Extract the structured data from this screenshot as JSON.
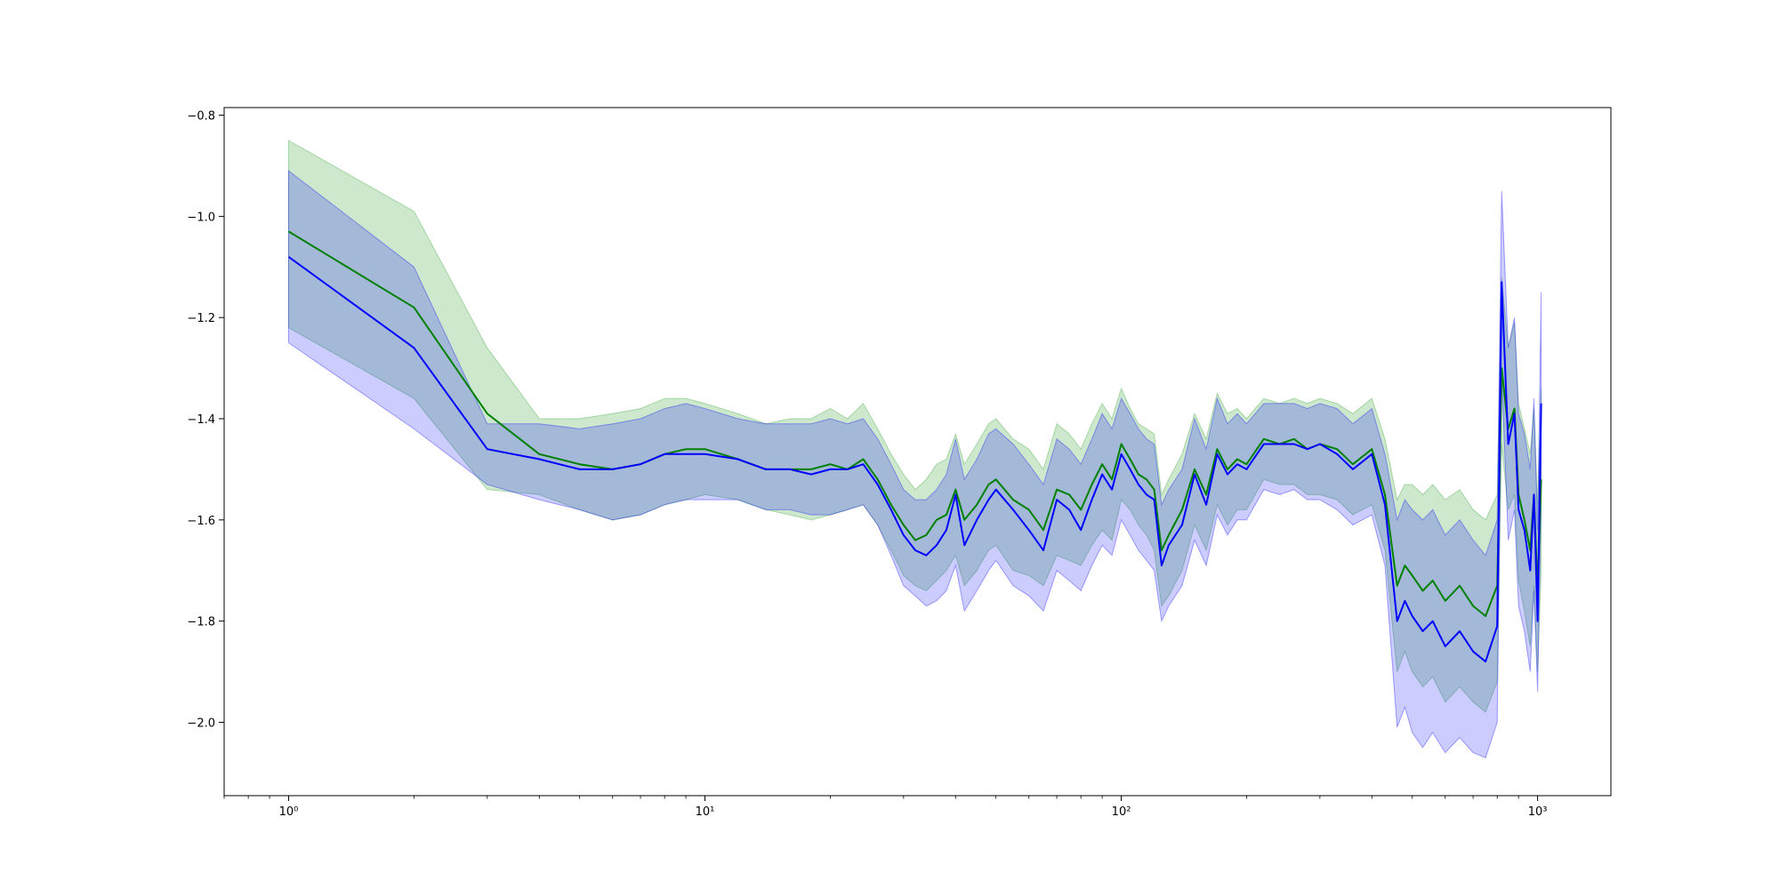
{
  "chart_data": {
    "type": "line",
    "title": "",
    "xlabel": "",
    "ylabel": "",
    "x_scale": "log",
    "xlim": [
      0.7,
      1500
    ],
    "ylim": [
      -2.145,
      -0.785
    ],
    "grid": false,
    "legend": "none",
    "x_ticks": [
      {
        "value": 1,
        "label": "10⁰"
      },
      {
        "value": 10,
        "label": "10¹"
      },
      {
        "value": 100,
        "label": "10²"
      },
      {
        "value": 1000,
        "label": "10³"
      }
    ],
    "y_ticks": [
      {
        "value": -0.8,
        "label": "−0.8"
      },
      {
        "value": -1.0,
        "label": "−1.0"
      },
      {
        "value": -1.2,
        "label": "−1.2"
      },
      {
        "value": -1.4,
        "label": "−1.4"
      },
      {
        "value": -1.6,
        "label": "−1.6"
      },
      {
        "value": -1.8,
        "label": "−1.8"
      },
      {
        "value": -2.0,
        "label": "−2.0"
      }
    ],
    "series": [
      {
        "color": "#008000",
        "band_color": "#2ca02c",
        "band_opacity": 0.24,
        "x": [
          1,
          2,
          3,
          4,
          5,
          6,
          7,
          8,
          9,
          10,
          12,
          14,
          16,
          18,
          20,
          22,
          24,
          26,
          28,
          30,
          32,
          34,
          36,
          38,
          40,
          42,
          45,
          48,
          50,
          55,
          60,
          65,
          70,
          75,
          80,
          85,
          90,
          95,
          100,
          105,
          110,
          115,
          120,
          125,
          130,
          140,
          150,
          160,
          170,
          180,
          190,
          200,
          220,
          240,
          260,
          280,
          300,
          330,
          360,
          400,
          430,
          460,
          480,
          500,
          530,
          560,
          600,
          650,
          700,
          750,
          800,
          820,
          850,
          880,
          900,
          930,
          960,
          980,
          1000,
          1020
        ],
        "y": [
          -1.03,
          -1.18,
          -1.39,
          -1.47,
          -1.49,
          -1.5,
          -1.49,
          -1.47,
          -1.46,
          -1.46,
          -1.48,
          -1.5,
          -1.5,
          -1.5,
          -1.49,
          -1.5,
          -1.48,
          -1.52,
          -1.57,
          -1.61,
          -1.64,
          -1.63,
          -1.6,
          -1.59,
          -1.54,
          -1.6,
          -1.57,
          -1.53,
          -1.52,
          -1.56,
          -1.58,
          -1.62,
          -1.54,
          -1.55,
          -1.58,
          -1.53,
          -1.49,
          -1.52,
          -1.45,
          -1.48,
          -1.51,
          -1.52,
          -1.54,
          -1.66,
          -1.63,
          -1.58,
          -1.5,
          -1.55,
          -1.46,
          -1.5,
          -1.48,
          -1.49,
          -1.44,
          -1.45,
          -1.44,
          -1.46,
          -1.45,
          -1.46,
          -1.49,
          -1.46,
          -1.55,
          -1.73,
          -1.69,
          -1.71,
          -1.74,
          -1.72,
          -1.76,
          -1.73,
          -1.77,
          -1.79,
          -1.73,
          -1.3,
          -1.42,
          -1.38,
          -1.55,
          -1.6,
          -1.66,
          -1.55,
          -1.74,
          -1.52
        ],
        "y_lo": [
          -1.22,
          -1.36,
          -1.54,
          -1.55,
          -1.58,
          -1.6,
          -1.59,
          -1.57,
          -1.56,
          -1.55,
          -1.56,
          -1.58,
          -1.59,
          -1.6,
          -1.59,
          -1.58,
          -1.57,
          -1.61,
          -1.66,
          -1.71,
          -1.73,
          -1.74,
          -1.72,
          -1.7,
          -1.67,
          -1.73,
          -1.7,
          -1.66,
          -1.65,
          -1.7,
          -1.71,
          -1.73,
          -1.67,
          -1.68,
          -1.69,
          -1.65,
          -1.62,
          -1.64,
          -1.56,
          -1.58,
          -1.61,
          -1.63,
          -1.66,
          -1.77,
          -1.75,
          -1.7,
          -1.61,
          -1.66,
          -1.57,
          -1.61,
          -1.58,
          -1.58,
          -1.52,
          -1.53,
          -1.53,
          -1.55,
          -1.55,
          -1.56,
          -1.59,
          -1.57,
          -1.66,
          -1.9,
          -1.86,
          -1.9,
          -1.93,
          -1.91,
          -1.96,
          -1.93,
          -1.96,
          -1.98,
          -1.92,
          -1.45,
          -1.58,
          -1.55,
          -1.72,
          -1.78,
          -1.85,
          -1.73,
          -1.9,
          -1.7
        ],
        "y_hi": [
          -0.85,
          -0.99,
          -1.26,
          -1.4,
          -1.4,
          -1.39,
          -1.38,
          -1.36,
          -1.36,
          -1.37,
          -1.39,
          -1.41,
          -1.4,
          -1.4,
          -1.38,
          -1.4,
          -1.37,
          -1.42,
          -1.47,
          -1.51,
          -1.54,
          -1.52,
          -1.49,
          -1.48,
          -1.43,
          -1.49,
          -1.45,
          -1.41,
          -1.4,
          -1.44,
          -1.46,
          -1.5,
          -1.41,
          -1.43,
          -1.46,
          -1.41,
          -1.37,
          -1.4,
          -1.34,
          -1.38,
          -1.41,
          -1.42,
          -1.43,
          -1.55,
          -1.52,
          -1.47,
          -1.39,
          -1.44,
          -1.35,
          -1.39,
          -1.38,
          -1.4,
          -1.36,
          -1.37,
          -1.36,
          -1.37,
          -1.36,
          -1.37,
          -1.39,
          -1.36,
          -1.44,
          -1.56,
          -1.53,
          -1.53,
          -1.55,
          -1.53,
          -1.56,
          -1.54,
          -1.58,
          -1.6,
          -1.55,
          -1.12,
          -1.26,
          -1.21,
          -1.37,
          -1.42,
          -1.47,
          -1.38,
          -1.57,
          -1.34
        ]
      },
      {
        "color": "#0000ff",
        "band_color": "#0000ff",
        "band_opacity": 0.2,
        "x": [
          1,
          2,
          3,
          4,
          5,
          6,
          7,
          8,
          9,
          10,
          12,
          14,
          16,
          18,
          20,
          22,
          24,
          26,
          28,
          30,
          32,
          34,
          36,
          38,
          40,
          42,
          45,
          48,
          50,
          55,
          60,
          65,
          70,
          75,
          80,
          85,
          90,
          95,
          100,
          105,
          110,
          115,
          120,
          125,
          130,
          140,
          150,
          160,
          170,
          180,
          190,
          200,
          220,
          240,
          260,
          280,
          300,
          330,
          360,
          400,
          430,
          460,
          480,
          500,
          530,
          560,
          600,
          650,
          700,
          750,
          800,
          820,
          850,
          880,
          900,
          930,
          960,
          980,
          1000,
          1020
        ],
        "y": [
          -1.08,
          -1.26,
          -1.46,
          -1.48,
          -1.5,
          -1.5,
          -1.49,
          -1.47,
          -1.47,
          -1.47,
          -1.48,
          -1.5,
          -1.5,
          -1.51,
          -1.5,
          -1.5,
          -1.49,
          -1.53,
          -1.58,
          -1.63,
          -1.66,
          -1.67,
          -1.65,
          -1.62,
          -1.55,
          -1.65,
          -1.6,
          -1.56,
          -1.54,
          -1.58,
          -1.62,
          -1.66,
          -1.56,
          -1.58,
          -1.62,
          -1.56,
          -1.51,
          -1.54,
          -1.47,
          -1.5,
          -1.53,
          -1.55,
          -1.56,
          -1.69,
          -1.65,
          -1.61,
          -1.51,
          -1.57,
          -1.47,
          -1.51,
          -1.49,
          -1.5,
          -1.45,
          -1.45,
          -1.45,
          -1.46,
          -1.45,
          -1.47,
          -1.5,
          -1.47,
          -1.57,
          -1.8,
          -1.76,
          -1.79,
          -1.82,
          -1.8,
          -1.85,
          -1.82,
          -1.86,
          -1.88,
          -1.81,
          -1.13,
          -1.45,
          -1.39,
          -1.58,
          -1.62,
          -1.7,
          -1.55,
          -1.8,
          -1.37
        ],
        "y_lo": [
          -1.25,
          -1.42,
          -1.53,
          -1.56,
          -1.58,
          -1.6,
          -1.59,
          -1.57,
          -1.56,
          -1.56,
          -1.56,
          -1.58,
          -1.58,
          -1.59,
          -1.59,
          -1.58,
          -1.57,
          -1.61,
          -1.67,
          -1.73,
          -1.75,
          -1.77,
          -1.76,
          -1.74,
          -1.69,
          -1.78,
          -1.74,
          -1.7,
          -1.68,
          -1.73,
          -1.75,
          -1.78,
          -1.7,
          -1.72,
          -1.74,
          -1.69,
          -1.65,
          -1.67,
          -1.6,
          -1.63,
          -1.66,
          -1.68,
          -1.7,
          -1.8,
          -1.77,
          -1.73,
          -1.64,
          -1.69,
          -1.59,
          -1.63,
          -1.6,
          -1.6,
          -1.54,
          -1.55,
          -1.54,
          -1.56,
          -1.56,
          -1.58,
          -1.61,
          -1.59,
          -1.69,
          -2.01,
          -1.97,
          -2.02,
          -2.05,
          -2.02,
          -2.06,
          -2.03,
          -2.06,
          -2.07,
          -2.0,
          -1.31,
          -1.64,
          -1.58,
          -1.77,
          -1.82,
          -1.9,
          -1.74,
          -1.94,
          -1.56
        ],
        "y_hi": [
          -0.91,
          -1.1,
          -1.41,
          -1.41,
          -1.42,
          -1.41,
          -1.4,
          -1.38,
          -1.37,
          -1.38,
          -1.4,
          -1.41,
          -1.41,
          -1.41,
          -1.4,
          -1.41,
          -1.4,
          -1.44,
          -1.49,
          -1.54,
          -1.56,
          -1.56,
          -1.54,
          -1.51,
          -1.44,
          -1.52,
          -1.48,
          -1.43,
          -1.42,
          -1.45,
          -1.49,
          -1.53,
          -1.44,
          -1.46,
          -1.49,
          -1.44,
          -1.39,
          -1.42,
          -1.36,
          -1.39,
          -1.42,
          -1.44,
          -1.45,
          -1.57,
          -1.54,
          -1.5,
          -1.4,
          -1.46,
          -1.36,
          -1.41,
          -1.39,
          -1.41,
          -1.37,
          -1.37,
          -1.37,
          -1.38,
          -1.37,
          -1.38,
          -1.41,
          -1.38,
          -1.47,
          -1.6,
          -1.56,
          -1.58,
          -1.6,
          -1.58,
          -1.63,
          -1.6,
          -1.64,
          -1.67,
          -1.6,
          -0.95,
          -1.26,
          -1.2,
          -1.39,
          -1.43,
          -1.5,
          -1.36,
          -1.62,
          -1.15
        ]
      }
    ]
  }
}
